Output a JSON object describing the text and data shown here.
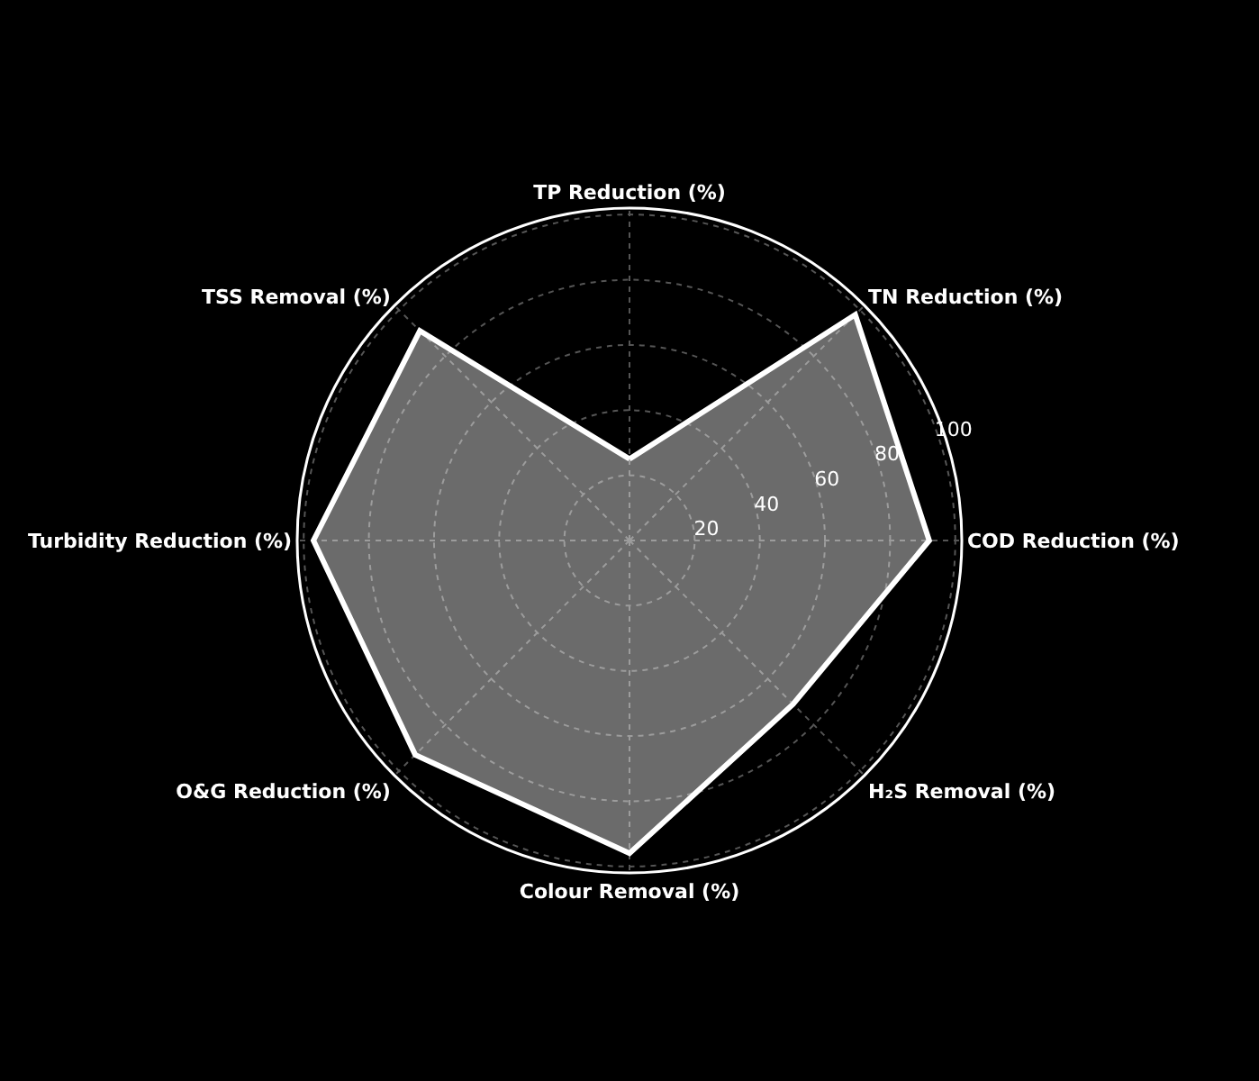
{
  "chart_data": {
    "type": "radar",
    "categories": [
      "TP Reduction (%)",
      "TN Reduction (%)",
      "COD Reduction (%)",
      "H₂S Removal (%)",
      "Colour Removal (%)",
      "O&G Reduction (%)",
      "Turbidity Reduction (%)",
      "TSS Removal (%)"
    ],
    "series": [
      {
        "color": "#ffffff",
        "values": [
          25,
          98,
          92,
          71,
          96,
          93,
          97,
          91
        ]
      }
    ],
    "ylim": [
      0,
      102
    ],
    "yticks": [
      20,
      40,
      60,
      80,
      100
    ],
    "grid": true,
    "marker": "none",
    "line_style": "solid"
  }
}
